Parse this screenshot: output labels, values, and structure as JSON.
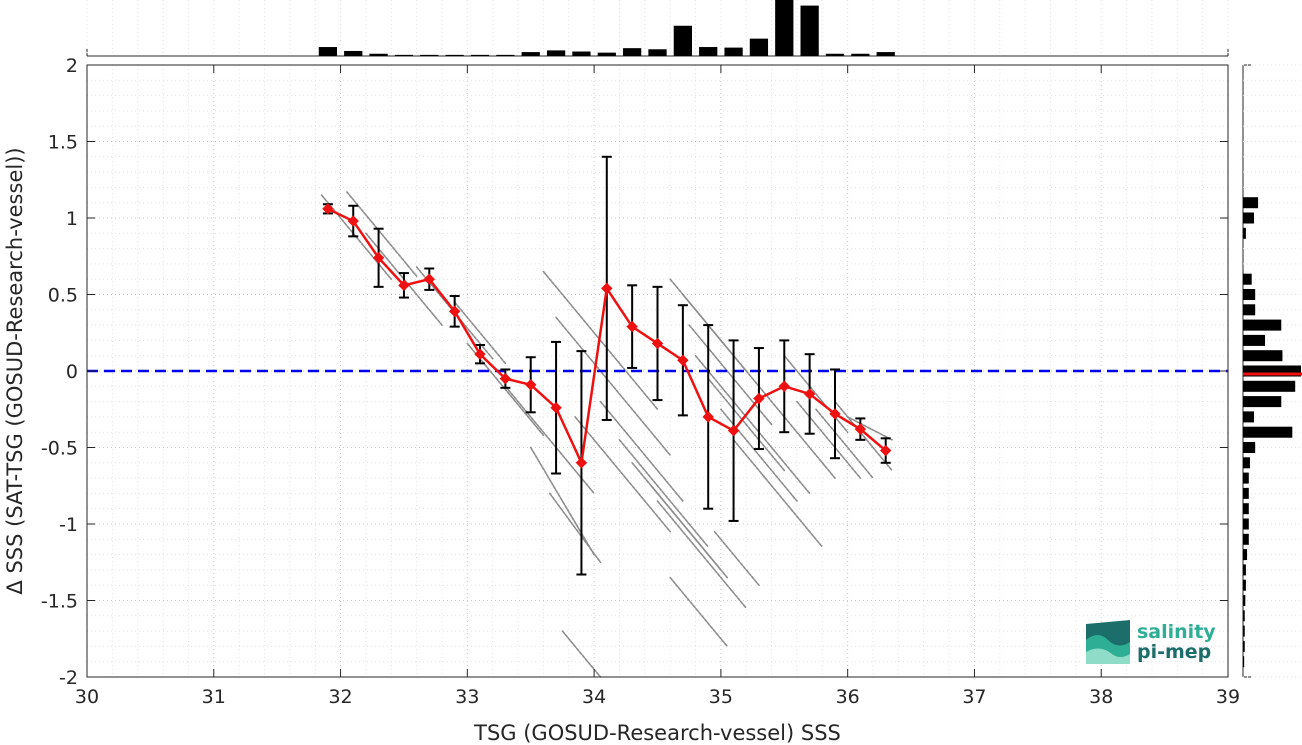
{
  "chart_data": {
    "type": "scatter",
    "xlabel": "TSG (GOSUD-Research-vessel) SSS",
    "ylabel": "Δ SSS (SAT-TSG (GOSUD-Research-vessel))",
    "xlim": [
      30,
      39
    ],
    "ylim": [
      -2,
      2
    ],
    "xticks": [
      "30",
      "31",
      "32",
      "33",
      "34",
      "35",
      "36",
      "37",
      "38",
      "39"
    ],
    "yticks": [
      "2",
      "1.5",
      "1",
      "0.5",
      "0",
      "-0.5",
      "-1",
      "-1.5",
      "-2"
    ],
    "grid": true,
    "zero_line": {
      "y": 0,
      "color": "#0000ee",
      "style": "dashed"
    },
    "binned_mean": {
      "color": "#ee1111",
      "marker": "diamond",
      "points": [
        {
          "x": 31.9,
          "y": 1.06,
          "err": 0.03
        },
        {
          "x": 32.1,
          "y": 0.98,
          "err": 0.1
        },
        {
          "x": 32.3,
          "y": 0.74,
          "err": 0.19
        },
        {
          "x": 32.5,
          "y": 0.56,
          "err": 0.08
        },
        {
          "x": 32.7,
          "y": 0.6,
          "err": 0.07
        },
        {
          "x": 32.9,
          "y": 0.39,
          "err": 0.1
        },
        {
          "x": 33.1,
          "y": 0.11,
          "err": 0.06
        },
        {
          "x": 33.3,
          "y": -0.05,
          "err": 0.06
        },
        {
          "x": 33.5,
          "y": -0.09,
          "err": 0.18
        },
        {
          "x": 33.7,
          "y": -0.24,
          "err": 0.43
        },
        {
          "x": 33.9,
          "y": -0.6,
          "err": 0.73
        },
        {
          "x": 34.1,
          "y": 0.54,
          "err": 0.86
        },
        {
          "x": 34.3,
          "y": 0.29,
          "err": 0.27
        },
        {
          "x": 34.5,
          "y": 0.18,
          "err": 0.37
        },
        {
          "x": 34.7,
          "y": 0.07,
          "err": 0.36
        },
        {
          "x": 34.9,
          "y": -0.3,
          "err": 0.6
        },
        {
          "x": 35.1,
          "y": -0.39,
          "err": 0.59
        },
        {
          "x": 35.3,
          "y": -0.18,
          "err": 0.33
        },
        {
          "x": 35.5,
          "y": -0.1,
          "err": 0.3
        },
        {
          "x": 35.7,
          "y": -0.15,
          "err": 0.26
        },
        {
          "x": 35.9,
          "y": -0.28,
          "err": 0.29
        },
        {
          "x": 36.1,
          "y": -0.38,
          "err": 0.07
        },
        {
          "x": 36.3,
          "y": -0.52,
          "err": 0.08
        }
      ]
    },
    "scatter_segments": [
      {
        "x1": 31.85,
        "y1": 1.15,
        "x2": 32.4,
        "y2": 0.6
      },
      {
        "x1": 32.05,
        "y1": 1.17,
        "x2": 32.6,
        "y2": 0.62
      },
      {
        "x1": 32.2,
        "y1": 0.9,
        "x2": 32.8,
        "y2": 0.3
      },
      {
        "x1": 32.6,
        "y1": 0.68,
        "x2": 33.2,
        "y2": 0.08
      },
      {
        "x1": 32.9,
        "y1": 0.45,
        "x2": 33.3,
        "y2": 0.05
      },
      {
        "x1": 33.0,
        "y1": 0.18,
        "x2": 33.6,
        "y2": -0.42
      },
      {
        "x1": 33.3,
        "y1": -0.1,
        "x2": 34.0,
        "y2": -0.8
      },
      {
        "x1": 33.5,
        "y1": -0.5,
        "x2": 34.0,
        "y2": -1.2
      },
      {
        "x1": 33.65,
        "y1": -0.8,
        "x2": 34.05,
        "y2": -1.25
      },
      {
        "x1": 33.6,
        "y1": 0.65,
        "x2": 34.5,
        "y2": -0.25
      },
      {
        "x1": 33.7,
        "y1": 0.35,
        "x2": 34.6,
        "y2": -0.55
      },
      {
        "x1": 33.75,
        "y1": -1.7,
        "x2": 34.05,
        "y2": -2.0
      },
      {
        "x1": 33.85,
        "y1": -0.3,
        "x2": 34.6,
        "y2": -1.05
      },
      {
        "x1": 34.05,
        "y1": -0.2,
        "x2": 34.7,
        "y2": -0.85
      },
      {
        "x1": 34.2,
        "y1": -0.45,
        "x2": 34.9,
        "y2": -1.15
      },
      {
        "x1": 34.3,
        "y1": -0.6,
        "x2": 35.0,
        "y2": -1.3
      },
      {
        "x1": 34.45,
        "y1": -0.75,
        "x2": 35.05,
        "y2": -1.35
      },
      {
        "x1": 34.5,
        "y1": -0.85,
        "x2": 35.2,
        "y2": -1.55
      },
      {
        "x1": 34.6,
        "y1": 0.6,
        "x2": 35.2,
        "y2": 0.0
      },
      {
        "x1": 34.7,
        "y1": 0.5,
        "x2": 35.3,
        "y2": -0.1
      },
      {
        "x1": 34.75,
        "y1": 0.3,
        "x2": 35.4,
        "y2": -0.35
      },
      {
        "x1": 34.8,
        "y1": 0.1,
        "x2": 35.7,
        "y2": -0.8
      },
      {
        "x1": 34.9,
        "y1": -0.05,
        "x2": 35.5,
        "y2": -0.65
      },
      {
        "x1": 35.0,
        "y1": -0.25,
        "x2": 35.6,
        "y2": -0.85
      },
      {
        "x1": 35.1,
        "y1": -0.45,
        "x2": 35.8,
        "y2": -1.15
      },
      {
        "x1": 34.95,
        "y1": -1.05,
        "x2": 35.3,
        "y2": -1.4
      },
      {
        "x1": 34.6,
        "y1": -1.35,
        "x2": 35.05,
        "y2": -1.8
      },
      {
        "x1": 35.3,
        "y1": -0.1,
        "x2": 35.9,
        "y2": -0.7
      },
      {
        "x1": 35.5,
        "y1": 0.1,
        "x2": 36.0,
        "y2": -0.4
      },
      {
        "x1": 35.6,
        "y1": -0.2,
        "x2": 36.1,
        "y2": -0.7
      },
      {
        "x1": 35.75,
        "y1": -0.25,
        "x2": 36.2,
        "y2": -0.7
      },
      {
        "x1": 35.9,
        "y1": -0.2,
        "x2": 36.35,
        "y2": -0.65
      },
      {
        "x1": 36.0,
        "y1": -0.3,
        "x2": 36.35,
        "y2": -0.45
      }
    ],
    "top_histogram": [
      {
        "x": 31.9,
        "h": 0.16
      },
      {
        "x": 32.1,
        "h": 0.09
      },
      {
        "x": 32.3,
        "h": 0.04
      },
      {
        "x": 32.5,
        "h": 0.02
      },
      {
        "x": 32.7,
        "h": 0.02
      },
      {
        "x": 32.9,
        "h": 0.02
      },
      {
        "x": 33.1,
        "h": 0.02
      },
      {
        "x": 33.3,
        "h": 0.02
      },
      {
        "x": 33.5,
        "h": 0.07
      },
      {
        "x": 33.7,
        "h": 0.1
      },
      {
        "x": 33.9,
        "h": 0.08
      },
      {
        "x": 34.1,
        "h": 0.06
      },
      {
        "x": 34.3,
        "h": 0.14
      },
      {
        "x": 34.5,
        "h": 0.12
      },
      {
        "x": 34.7,
        "h": 0.54
      },
      {
        "x": 34.9,
        "h": 0.16
      },
      {
        "x": 35.1,
        "h": 0.15
      },
      {
        "x": 35.3,
        "h": 0.31
      },
      {
        "x": 35.5,
        "h": 1.0
      },
      {
        "x": 35.7,
        "h": 0.9
      },
      {
        "x": 35.9,
        "h": 0.04
      },
      {
        "x": 36.1,
        "h": 0.04
      },
      {
        "x": 36.3,
        "h": 0.07
      }
    ],
    "right_histogram": [
      {
        "y": 1.1,
        "w": 0.26
      },
      {
        "y": 1.0,
        "w": 0.19
      },
      {
        "y": 0.9,
        "w": 0.05
      },
      {
        "y": 0.6,
        "w": 0.15
      },
      {
        "y": 0.5,
        "w": 0.21
      },
      {
        "y": 0.4,
        "w": 0.21
      },
      {
        "y": 0.3,
        "w": 0.66
      },
      {
        "y": 0.2,
        "w": 0.38
      },
      {
        "y": 0.1,
        "w": 0.68
      },
      {
        "y": 0.0,
        "w": 1.0
      },
      {
        "y": -0.1,
        "w": 0.9
      },
      {
        "y": -0.2,
        "w": 0.66
      },
      {
        "y": -0.3,
        "w": 0.19
      },
      {
        "y": -0.4,
        "w": 0.85
      },
      {
        "y": -0.5,
        "w": 0.21
      },
      {
        "y": -0.6,
        "w": 0.12
      },
      {
        "y": -0.7,
        "w": 0.1
      },
      {
        "y": -0.8,
        "w": 0.1
      },
      {
        "y": -0.9,
        "w": 0.1
      },
      {
        "y": -1.0,
        "w": 0.1
      },
      {
        "y": -1.1,
        "w": 0.1
      },
      {
        "y": -1.2,
        "w": 0.07
      },
      {
        "y": -1.3,
        "w": 0.05
      },
      {
        "y": -1.4,
        "w": 0.05
      },
      {
        "y": -1.5,
        "w": 0.04
      },
      {
        "y": -1.6,
        "w": 0.03
      },
      {
        "y": -1.7,
        "w": 0.03
      },
      {
        "y": -1.8,
        "w": 0.03
      },
      {
        "y": -1.9,
        "w": 0.02
      }
    ],
    "right_histogram_marker": {
      "y": -0.02,
      "color": "#ee1111"
    }
  },
  "logo": {
    "line1": "salinity",
    "line2": "pi-mep",
    "color1": "#2fae96",
    "color2": "#1c6e6a"
  }
}
